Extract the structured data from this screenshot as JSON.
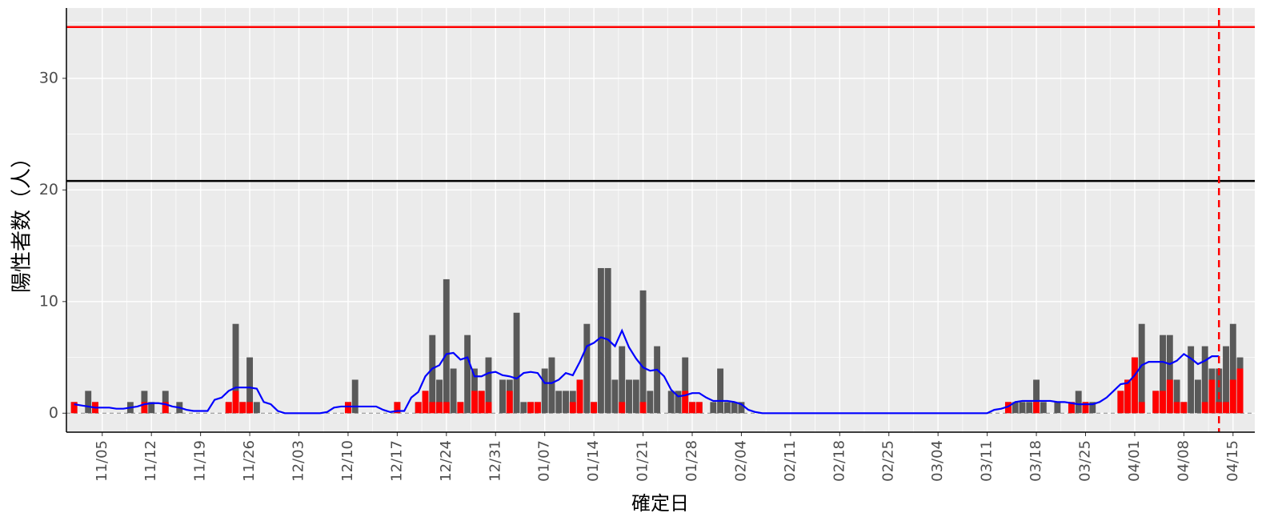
{
  "chart_data": {
    "type": "bar",
    "ylabel": "陽性者数（人）",
    "xlabel": "確定日",
    "categories": [
      null,
      null,
      null,
      null,
      "11/05",
      null,
      null,
      null,
      null,
      null,
      null,
      "11/12",
      null,
      null,
      null,
      null,
      null,
      null,
      "11/19",
      null,
      null,
      null,
      null,
      null,
      null,
      "11/26",
      null,
      null,
      null,
      null,
      null,
      null,
      "12/03",
      null,
      null,
      null,
      null,
      null,
      null,
      "12/10",
      null,
      null,
      null,
      null,
      null,
      null,
      "12/17",
      null,
      null,
      null,
      null,
      null,
      null,
      "12/24",
      null,
      null,
      null,
      null,
      null,
      null,
      "12/31",
      null,
      null,
      null,
      null,
      null,
      null,
      "01/07",
      null,
      null,
      null,
      null,
      null,
      null,
      "01/14",
      null,
      null,
      null,
      null,
      null,
      null,
      "01/21",
      null,
      null,
      null,
      null,
      null,
      null,
      "01/28",
      null,
      null,
      null,
      null,
      null,
      null,
      "02/04",
      null,
      null,
      null,
      null,
      null,
      null,
      "02/11",
      null,
      null,
      null,
      null,
      null,
      null,
      "02/18",
      null,
      null,
      null,
      null,
      null,
      null,
      "02/25",
      null,
      null,
      null,
      null,
      null,
      null,
      "03/04",
      null,
      null,
      null,
      null,
      null,
      null,
      "03/11",
      null,
      null,
      null,
      null,
      null,
      null,
      "03/18",
      null,
      null,
      null,
      null,
      null,
      null,
      "03/25",
      null,
      null,
      null,
      null,
      null,
      null,
      "04/01",
      null,
      null,
      null,
      null,
      null,
      null,
      "04/08",
      null,
      null,
      null,
      null,
      null,
      null,
      "04/15",
      null
    ],
    "series": [
      {
        "type": "bar",
        "color": "#595959",
        "values": [
          1,
          0,
          2,
          1,
          0,
          0,
          0,
          0,
          1,
          0,
          2,
          1,
          0,
          2,
          0,
          1,
          0,
          0,
          0,
          0,
          0,
          0,
          1,
          8,
          1,
          5,
          1,
          0,
          0,
          0,
          0,
          0,
          0,
          0,
          0,
          0,
          0,
          0,
          0,
          1,
          3,
          0,
          0,
          0,
          0,
          0,
          1,
          0,
          0,
          1,
          2,
          7,
          3,
          12,
          4,
          1,
          7,
          4,
          2,
          5,
          0,
          3,
          3,
          9,
          1,
          1,
          1,
          4,
          5,
          2,
          2,
          2,
          3,
          8,
          1,
          13,
          13,
          3,
          6,
          3,
          3,
          11,
          2,
          6,
          0,
          2,
          2,
          5,
          1,
          1,
          0,
          1,
          4,
          1,
          1,
          1,
          0,
          0,
          0,
          0,
          0,
          0,
          0,
          0,
          0,
          0,
          0,
          0,
          0,
          0,
          0,
          0,
          0,
          0,
          0,
          0,
          0,
          0,
          0,
          0,
          0,
          0,
          0,
          0,
          0,
          0,
          0,
          0,
          0,
          0,
          0,
          0,
          0,
          1,
          1,
          1,
          1,
          3,
          1,
          0,
          1,
          0,
          1,
          2,
          1,
          1,
          0,
          0,
          0,
          2,
          3,
          5,
          8,
          0,
          2,
          7,
          7,
          3,
          1,
          6,
          3,
          6,
          4,
          4,
          6,
          8,
          5
        ]
      },
      {
        "type": "bar",
        "color": "#ff0000",
        "values": [
          1,
          0,
          0,
          1,
          0,
          0,
          0,
          0,
          0,
          0,
          1,
          0,
          0,
          1,
          0,
          0,
          0,
          0,
          0,
          0,
          0,
          0,
          1,
          2,
          1,
          1,
          0,
          0,
          0,
          0,
          0,
          0,
          0,
          0,
          0,
          0,
          0,
          0,
          0,
          1,
          0,
          0,
          0,
          0,
          0,
          0,
          1,
          0,
          0,
          1,
          2,
          1,
          1,
          1,
          0,
          1,
          0,
          2,
          2,
          1,
          0,
          0,
          2,
          0,
          0,
          1,
          1,
          0,
          0,
          0,
          0,
          1,
          3,
          0,
          1,
          0,
          0,
          0,
          1,
          0,
          0,
          1,
          0,
          0,
          0,
          0,
          0,
          2,
          1,
          1,
          0,
          0,
          0,
          0,
          0,
          0,
          0,
          0,
          0,
          0,
          0,
          0,
          0,
          0,
          0,
          0,
          0,
          0,
          0,
          0,
          0,
          0,
          0,
          0,
          0,
          0,
          0,
          0,
          0,
          0,
          0,
          0,
          0,
          0,
          0,
          0,
          0,
          0,
          0,
          0,
          0,
          0,
          0,
          1,
          0,
          0,
          0,
          1,
          0,
          0,
          0,
          0,
          1,
          0,
          1,
          0,
          0,
          0,
          0,
          2,
          3,
          5,
          1,
          0,
          2,
          2,
          3,
          1,
          1,
          0,
          0,
          1,
          3,
          1,
          1,
          3,
          4
        ]
      },
      {
        "type": "line",
        "color": "#0000ff",
        "values": [
          0.8,
          0.7,
          0.6,
          0.5,
          0.5,
          0.5,
          0.4,
          0.4,
          0.5,
          0.6,
          0.8,
          0.9,
          0.9,
          0.8,
          0.6,
          0.5,
          0.3,
          0.2,
          0.2,
          0.2,
          1.2,
          1.4,
          2.0,
          2.3,
          2.3,
          2.3,
          2.2,
          1.0,
          0.8,
          0.2,
          0,
          0,
          0,
          0,
          0,
          0,
          0.1,
          0.5,
          0.6,
          0.6,
          0.6,
          0.6,
          0.6,
          0.6,
          0.3,
          0.1,
          0.2,
          0.2,
          1.4,
          1.9,
          3.3,
          4.0,
          4.3,
          5.3,
          5.4,
          4.8,
          5.0,
          3.3,
          3.3,
          3.6,
          3.7,
          3.4,
          3.3,
          3.1,
          3.6,
          3.7,
          3.6,
          2.7,
          2.7,
          3.0,
          3.6,
          3.4,
          4.6,
          6.0,
          6.3,
          6.8,
          6.6,
          6.0,
          7.4,
          5.9,
          4.9,
          4.1,
          3.8,
          3.9,
          3.3,
          2.1,
          1.5,
          1.6,
          1.8,
          1.8,
          1.4,
          1.1,
          1.1,
          1.1,
          1.0,
          0.8,
          0.3,
          0.1,
          0,
          0,
          0,
          0,
          0,
          0,
          0,
          0,
          0,
          0,
          0,
          0,
          0,
          0,
          0,
          0,
          0,
          0,
          0,
          0,
          0,
          0,
          0,
          0,
          0,
          0,
          0,
          0,
          0,
          0,
          0,
          0,
          0,
          0.3,
          0.4,
          0.6,
          1.0,
          1.1,
          1.1,
          1.1,
          1.1,
          1.1,
          1.0,
          1.0,
          0.9,
          0.8,
          0.8,
          0.8,
          1.0,
          1.4,
          2.0,
          2.6,
          2.7,
          3.4,
          4.3,
          4.6,
          4.6,
          4.6,
          4.4,
          4.7,
          5.3,
          4.9,
          4.4,
          4.7,
          5.1,
          5.1,
          null,
          null,
          null
        ]
      }
    ],
    "hlines": [
      {
        "value": 34.6,
        "color": "#ff0000"
      },
      {
        "value": 20.8,
        "color": "#000000"
      }
    ],
    "vline": {
      "index": 163,
      "color": "#ff0000"
    },
    "ylim": [
      -1.7,
      36.3
    ],
    "yticks": [
      0,
      10,
      20,
      30
    ],
    "yminor": [
      5,
      15,
      25,
      35
    ],
    "grid": true
  }
}
